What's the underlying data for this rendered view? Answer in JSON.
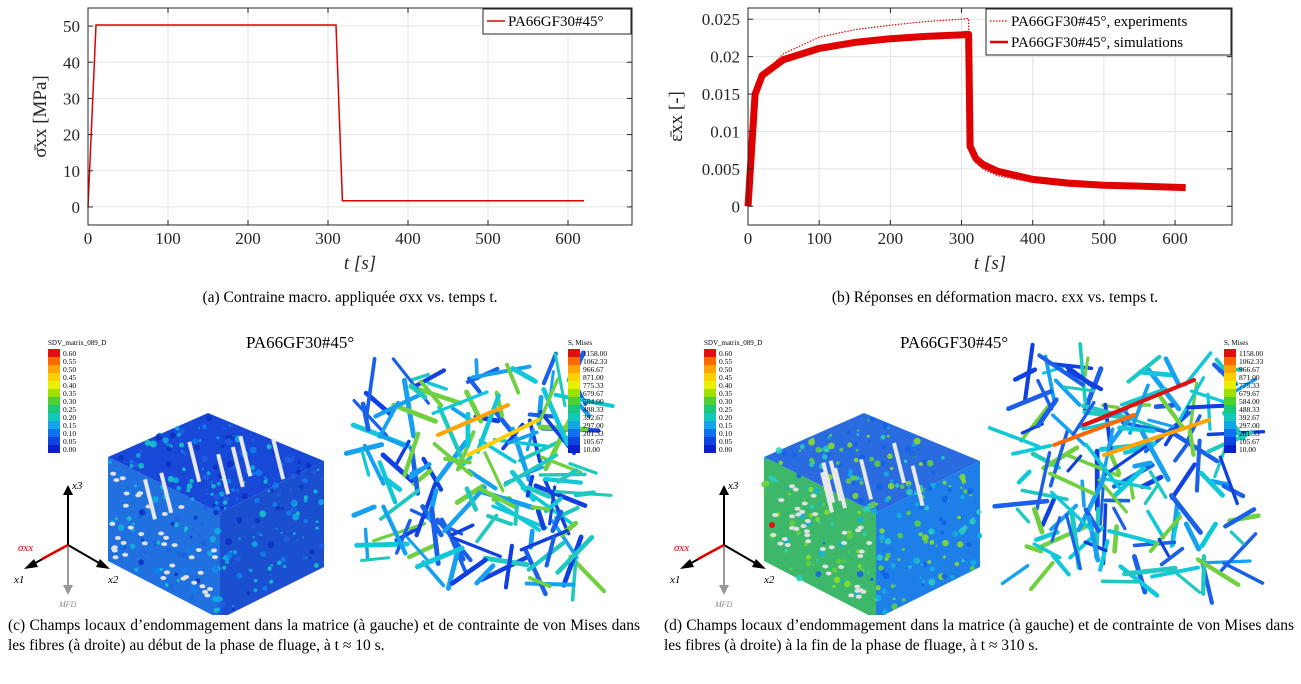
{
  "chart_data": [
    {
      "type": "line",
      "xlabel": "t [s]",
      "ylabel": "σ̄xx [MPa]",
      "xlim": [
        0,
        680
      ],
      "ylim": [
        -5,
        55
      ],
      "xticks": [
        "0",
        "100",
        "200",
        "300",
        "400",
        "500",
        "600"
      ],
      "yticks": [
        "0",
        "10",
        "20",
        "30",
        "40",
        "50"
      ],
      "grid": true,
      "legend_position": "top-right",
      "series": [
        {
          "name": "PA66GF30#45°",
          "color": "#e00000",
          "style": "solid",
          "x": [
            0,
            10,
            310,
            318,
            620
          ],
          "y": [
            0,
            50.3,
            50.3,
            1.7,
            1.7
          ]
        }
      ]
    },
    {
      "type": "line",
      "xlabel": "t [s]",
      "ylabel": "ε̄xx [-]",
      "xlim": [
        0,
        680
      ],
      "ylim": [
        -0.0025,
        0.0265
      ],
      "xticks": [
        "0",
        "100",
        "200",
        "300",
        "400",
        "500",
        "600"
      ],
      "yticks": [
        "0",
        "0.005",
        "0.01",
        "0.015",
        "0.02",
        "0.025"
      ],
      "grid": true,
      "legend_position": "top-right",
      "series": [
        {
          "name": "PA66GF30#45°, experiments",
          "color": "#e00000",
          "style": "dotted",
          "x": [
            0,
            10,
            20,
            50,
            100,
            150,
            200,
            250,
            300,
            310,
            312,
            320,
            330,
            350,
            400,
            450,
            500,
            550,
            615
          ],
          "y": [
            0,
            0.0148,
            0.0176,
            0.0204,
            0.0226,
            0.0236,
            0.0242,
            0.0247,
            0.025,
            0.0251,
            0.0075,
            0.0058,
            0.005,
            0.0041,
            0.0032,
            0.0027,
            0.0025,
            0.0024,
            0.0023
          ]
        },
        {
          "name": "PA66GF30#45°, simulations",
          "color": "#e00000",
          "style": "band",
          "x": [
            0,
            10,
            20,
            50,
            100,
            150,
            200,
            250,
            300,
            310,
            312,
            320,
            330,
            350,
            400,
            450,
            500,
            550,
            615
          ],
          "y": [
            0,
            0.015,
            0.0175,
            0.0196,
            0.0211,
            0.0219,
            0.0224,
            0.0227,
            0.0229,
            0.023,
            0.008,
            0.0064,
            0.0056,
            0.0047,
            0.0036,
            0.0031,
            0.0028,
            0.0027,
            0.0025
          ]
        }
      ]
    }
  ],
  "captions": {
    "a": "(a) Contraine macro. appliquée σxx vs. temps t.",
    "b": "(b) Réponses en déformation macro. εxx vs. temps t.",
    "c": "(c) Champs locaux d’endommagement dans la matrice (à gauche) et de contrainte de von Mises dans les fibres (à droite) au début de la phase de fluage, à t ≈ 10 s.",
    "d": "(d) Champs locaux d’endommagement dans la matrice (à gauche) et de contrainte de von Mises dans les fibres (à droite) à la fin de la phase de fluage, à t ≈ 310 s."
  },
  "simulation": {
    "title": "PA66GF30#45°",
    "damage_legend_title": "SDV_matrix_089_D",
    "damage_levels": [
      "0.60",
      "0.55",
      "0.50",
      "0.45",
      "0.40",
      "0.35",
      "0.30",
      "0.25",
      "0.20",
      "0.15",
      "0.10",
      "0.05",
      "0.00"
    ],
    "mises_legend_title": "S, Mises",
    "mises_levels": [
      "1158.00",
      "1062.33",
      "966.67",
      "871.00",
      "775.33",
      "679.67",
      "584.00",
      "488.33",
      "392.67",
      "297.00",
      "201.33",
      "105.67",
      "10.00"
    ],
    "axes": {
      "x1": "x1",
      "x2": "x2",
      "x3": "x3",
      "load": "σxx",
      "mfd": "MFD"
    },
    "colors": {
      "accent": "#e00000",
      "damage_low": "#1030d0",
      "damage_high": "#e01010"
    }
  }
}
